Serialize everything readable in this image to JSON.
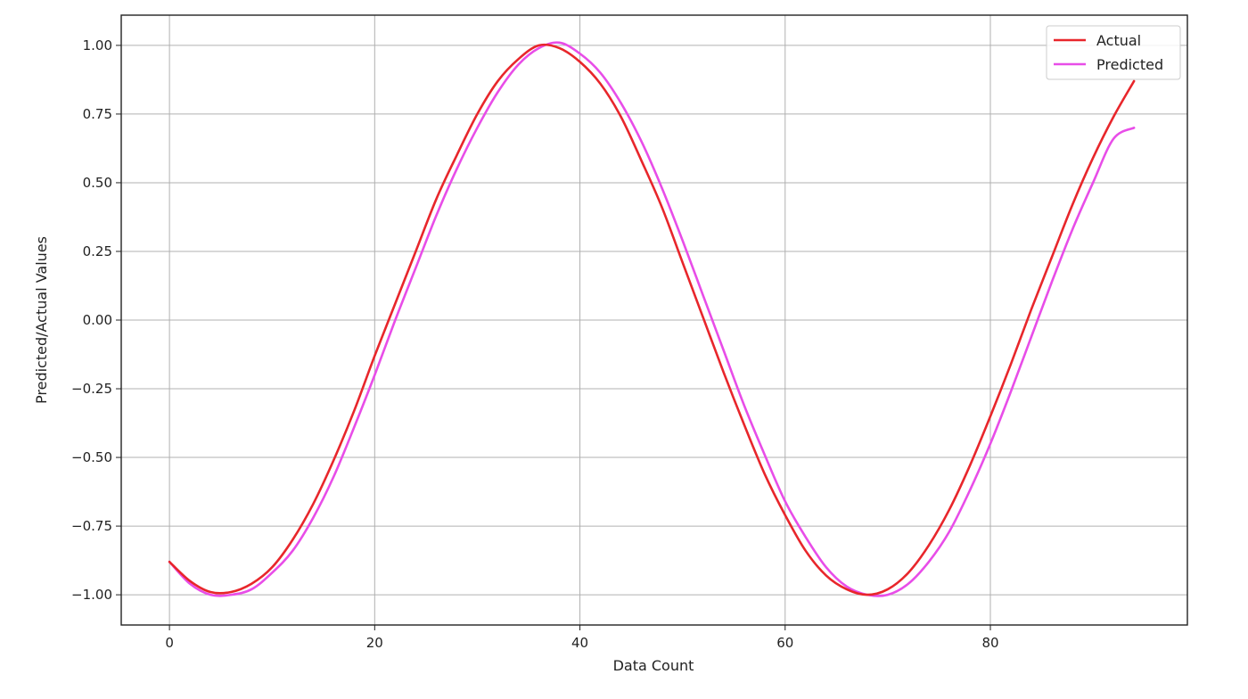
{
  "chart_data": {
    "type": "line",
    "title": "",
    "xlabel": "Data Count",
    "ylabel": "Predicted/Actual Values",
    "xlim": [
      -4.7,
      99.2
    ],
    "ylim": [
      -1.11,
      1.11
    ],
    "xticks": [
      0,
      20,
      40,
      60,
      80
    ],
    "xtick_labels": [
      "0",
      "20",
      "40",
      "60",
      "80"
    ],
    "yticks": [
      -1.0,
      -0.75,
      -0.5,
      -0.25,
      0.0,
      0.25,
      0.5,
      0.75,
      1.0
    ],
    "ytick_labels": [
      "−1.00",
      "−0.75",
      "−0.50",
      "−0.25",
      "0.00",
      "0.25",
      "0.50",
      "0.75",
      "1.00"
    ],
    "grid": true,
    "legend_position": "top-right",
    "series": [
      {
        "name": "Actual",
        "color": "#e8262b",
        "x": [
          0,
          2,
          4,
          6,
          8,
          10,
          12,
          14,
          16,
          18,
          20,
          22,
          24,
          26,
          28,
          30,
          32,
          34,
          36,
          38,
          40,
          42,
          44,
          46,
          48,
          50,
          52,
          54,
          56,
          58,
          60,
          62,
          64,
          66,
          68,
          70,
          72,
          74,
          76,
          78,
          80,
          82,
          84,
          86,
          88,
          90,
          92,
          94
        ],
        "y": [
          -0.88,
          -0.95,
          -0.99,
          -0.99,
          -0.96,
          -0.9,
          -0.8,
          -0.67,
          -0.51,
          -0.33,
          -0.13,
          0.06,
          0.25,
          0.44,
          0.6,
          0.75,
          0.87,
          0.95,
          1.0,
          0.99,
          0.94,
          0.86,
          0.74,
          0.58,
          0.41,
          0.21,
          0.01,
          -0.19,
          -0.38,
          -0.56,
          -0.71,
          -0.84,
          -0.93,
          -0.98,
          -1.0,
          -0.98,
          -0.92,
          -0.82,
          -0.69,
          -0.53,
          -0.35,
          -0.16,
          0.04,
          0.23,
          0.42,
          0.59,
          0.74,
          0.87
        ]
      },
      {
        "name": "Predicted",
        "color": "#e84de8",
        "x": [
          0,
          2,
          4,
          6,
          8,
          10,
          12,
          14,
          16,
          18,
          20,
          22,
          24,
          26,
          28,
          30,
          32,
          34,
          36,
          38,
          40,
          42,
          44,
          46,
          48,
          50,
          52,
          54,
          56,
          58,
          60,
          62,
          64,
          66,
          68,
          70,
          72,
          74,
          76,
          78,
          80,
          82,
          84,
          86,
          88,
          90,
          92,
          94
        ],
        "y": [
          -0.88,
          -0.96,
          -1.0,
          -1.0,
          -0.98,
          -0.92,
          -0.84,
          -0.72,
          -0.57,
          -0.39,
          -0.2,
          0.0,
          0.19,
          0.38,
          0.55,
          0.7,
          0.83,
          0.93,
          0.99,
          1.01,
          0.97,
          0.9,
          0.79,
          0.65,
          0.48,
          0.29,
          0.09,
          -0.11,
          -0.31,
          -0.49,
          -0.66,
          -0.79,
          -0.9,
          -0.97,
          -1.0,
          -1.0,
          -0.96,
          -0.88,
          -0.77,
          -0.62,
          -0.45,
          -0.26,
          -0.06,
          0.14,
          0.33,
          0.5,
          0.66,
          0.7
        ]
      }
    ]
  }
}
